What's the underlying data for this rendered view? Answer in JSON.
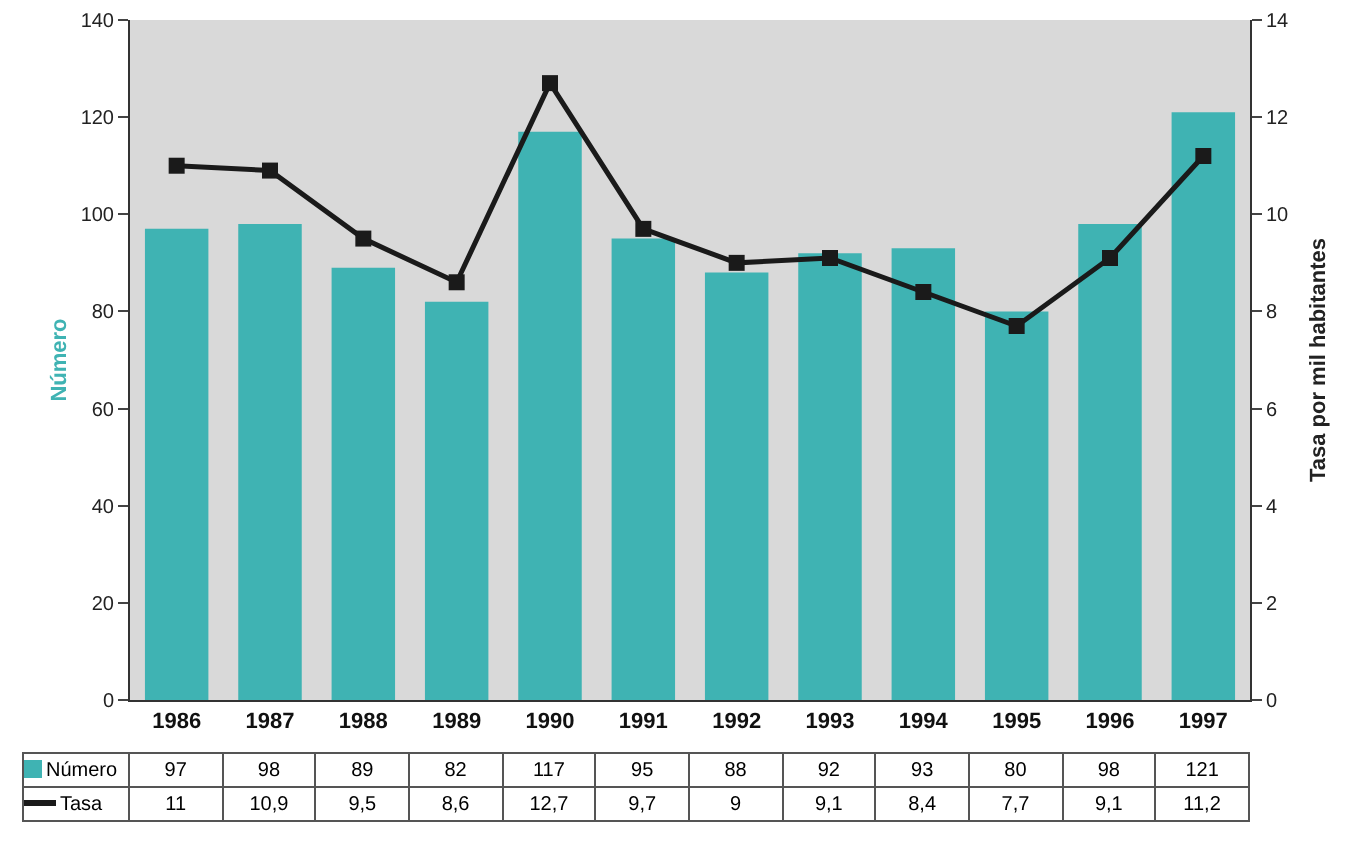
{
  "chart_data": {
    "type": "bar",
    "ylabel": "Número",
    "y2label": "Tasa por mil habitantes",
    "categories": [
      "1986",
      "1987",
      "1988",
      "1989",
      "1990",
      "1991",
      "1992",
      "1993",
      "1994",
      "1995",
      "1996",
      "1997"
    ],
    "series": [
      {
        "name": "Número",
        "color": "#3fb3b3",
        "values": [
          97,
          98,
          89,
          82,
          117,
          95,
          88,
          92,
          93,
          80,
          98,
          121
        ],
        "value_labels": [
          "97",
          "98",
          "89",
          "82",
          "117",
          "95",
          "88",
          "92",
          "93",
          "80",
          "98",
          "121"
        ]
      },
      {
        "name": "Tasa",
        "type": "line",
        "axis": "y2",
        "color": "#1a1a1a",
        "marker": "square",
        "values": [
          11,
          10.9,
          9.5,
          8.6,
          12.7,
          9.7,
          9,
          9.1,
          8.4,
          7.7,
          9.1,
          11.2
        ],
        "value_labels": [
          "11",
          "10,9",
          "9,5",
          "8,6",
          "12,7",
          "9,7",
          "9",
          "9,1",
          "8,4",
          "7,7",
          "9,1",
          "11,2"
        ]
      }
    ],
    "ylim": [
      0,
      140
    ],
    "yticks": [
      0,
      20,
      40,
      60,
      80,
      100,
      120,
      140
    ],
    "y2lim": [
      0,
      14
    ],
    "y2ticks": [
      0,
      2,
      4,
      6,
      8,
      10,
      12,
      14
    ],
    "grid": false,
    "legend": "bottom left"
  }
}
